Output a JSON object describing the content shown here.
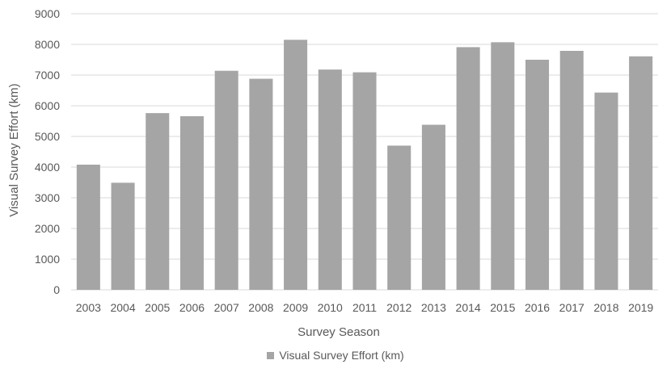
{
  "chart_data": {
    "type": "bar",
    "categories": [
      "2003",
      "2004",
      "2005",
      "2006",
      "2007",
      "2008",
      "2009",
      "2010",
      "2011",
      "2012",
      "2013",
      "2014",
      "2015",
      "2016",
      "2017",
      "2018",
      "2019"
    ],
    "series": [
      {
        "name": "Visual Survey Effort (km)",
        "values": [
          4080,
          3490,
          5760,
          5660,
          7140,
          6880,
          8150,
          7180,
          7090,
          4700,
          5380,
          7910,
          8070,
          7500,
          7790,
          6430,
          7610
        ],
        "color": "#a5a5a5"
      }
    ],
    "xlabel": "Survey Season",
    "ylabel": "Visual Survey Effort (km)",
    "ylim": [
      0,
      9000
    ],
    "yticks": [
      0,
      1000,
      2000,
      3000,
      4000,
      5000,
      6000,
      7000,
      8000,
      9000
    ],
    "grid": true,
    "legend_position": "bottom",
    "colors": {
      "bar": "#a5a5a5",
      "grid": "#d9d9d9",
      "text": "#595959"
    }
  }
}
